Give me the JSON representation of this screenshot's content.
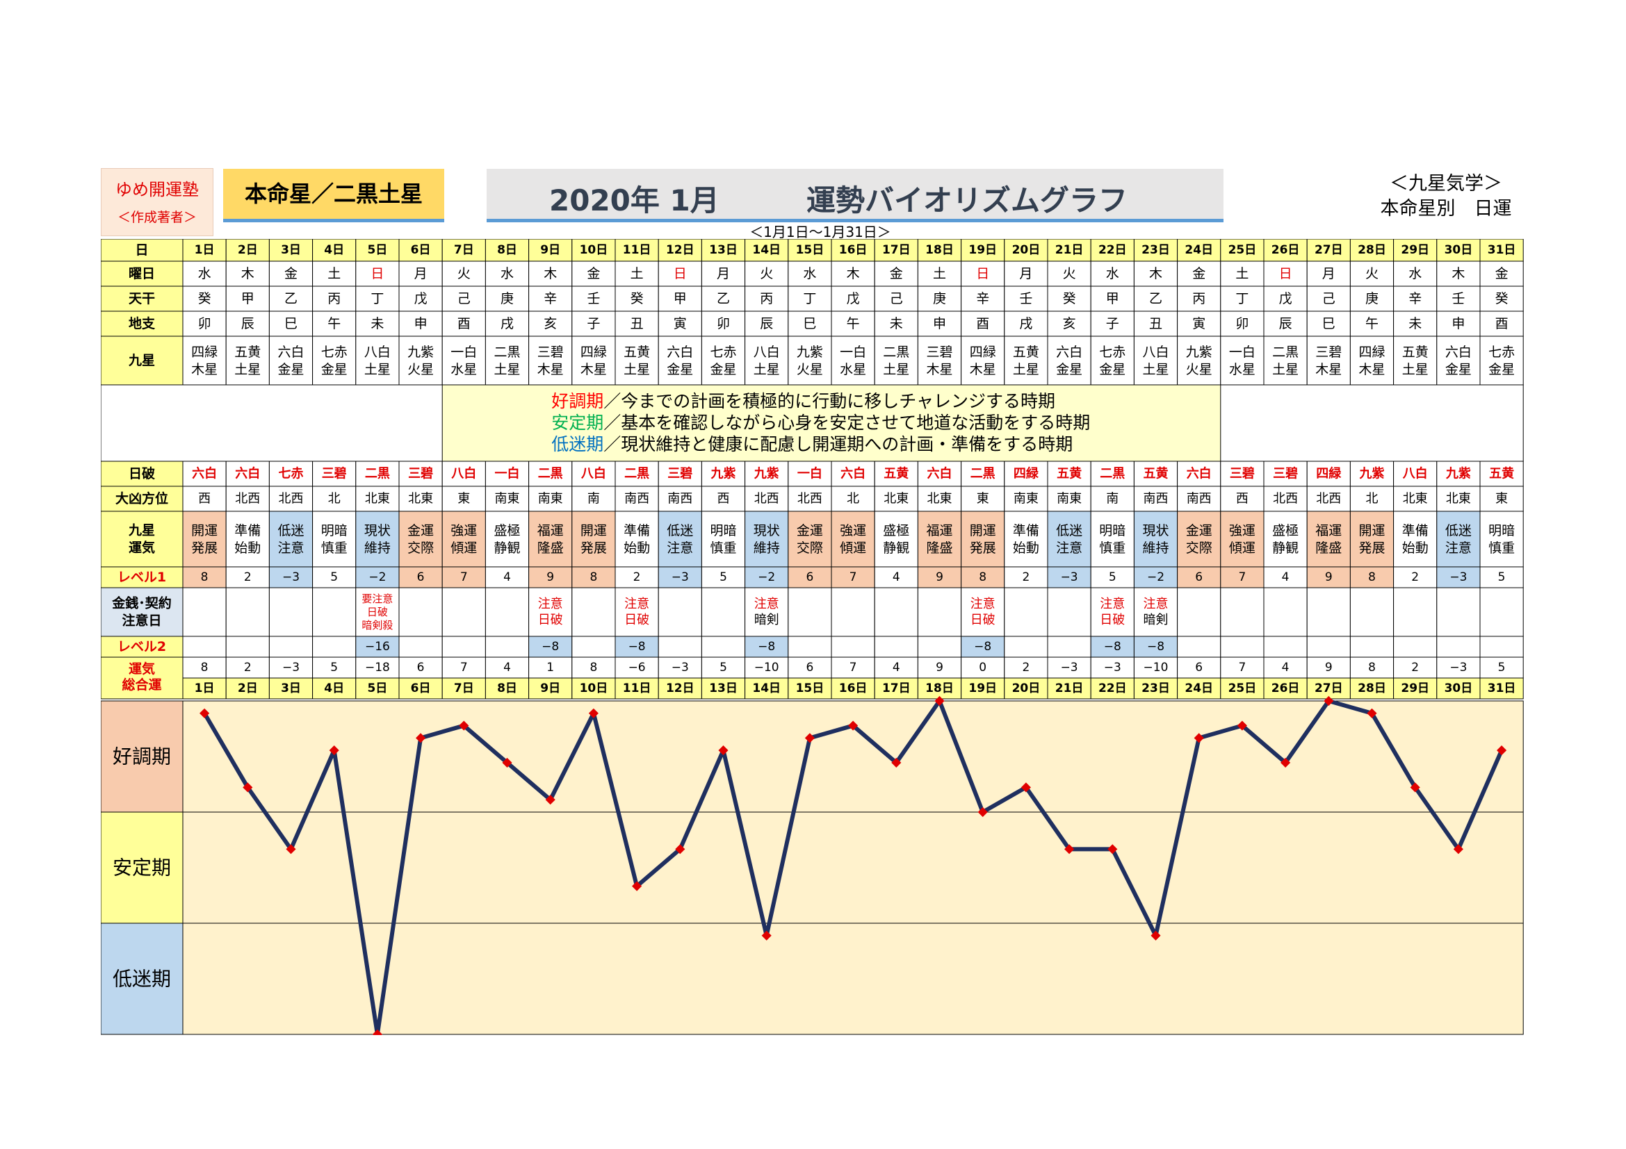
{
  "header": {
    "brand_name": "ゆめ開運塾",
    "brand_author": "＜作成著者＞",
    "honmei": "本命星／二黒土星",
    "title_year": "2020年 1月",
    "title_main": "運勢バイオリズムグラフ",
    "subtitle": "＜1月1日～1月31日＞",
    "kyusei_line1": "＜九星気学＞",
    "kyusei_line2": "本命星別　日運"
  },
  "row_labels": {
    "day": "日",
    "weekday": "曜日",
    "tenkan": "天干",
    "chishi": "地支",
    "kyusei": "九星",
    "nippa": "日破",
    "daikyo": "大凶方位",
    "unki_1": "九星",
    "unki_2": "運気",
    "level1": "レベル1",
    "kinsen_1": "金銭･契約",
    "kinsen_2": "注意日",
    "level2": "レベル2",
    "sogo_1": "運気",
    "sogo_2": "総合運"
  },
  "legend": [
    {
      "name": "好調期",
      "text": "／今までの計画を積極的に行動に移しチャレンジする時期",
      "color": "#ff0000"
    },
    {
      "name": "安定期",
      "text": "／基本を確認しながら心身を安定させて地道な活動をする時期",
      "color": "#00b050"
    },
    {
      "name": "低迷期",
      "text": "／現状維持と健康に配慮し開運期への計画・準備をする時期",
      "color": "#0070c0"
    }
  ],
  "bands": [
    {
      "label": "好調期",
      "color": "#f8cbad"
    },
    {
      "label": "安定期",
      "color": "#ffff99"
    },
    {
      "label": "低迷期",
      "color": "#bdd7ee"
    }
  ],
  "colors": {
    "header_row": "#ffff99",
    "chart_bg": "#fff2cc",
    "line": "#1f2f5f",
    "marker": "#e00000",
    "good_cell": "#f8cbad",
    "low_cell": "#bdd7ee",
    "red_text": "#e00000"
  },
  "days": [
    "1日",
    "2日",
    "3日",
    "4日",
    "5日",
    "6日",
    "7日",
    "8日",
    "9日",
    "10日",
    "11日",
    "12日",
    "13日",
    "14日",
    "15日",
    "16日",
    "17日",
    "18日",
    "19日",
    "20日",
    "21日",
    "22日",
    "23日",
    "24日",
    "25日",
    "26日",
    "27日",
    "28日",
    "29日",
    "30日",
    "31日"
  ],
  "weekdays": [
    "水",
    "木",
    "金",
    "土",
    "日",
    "月",
    "火",
    "水",
    "木",
    "金",
    "土",
    "日",
    "月",
    "火",
    "水",
    "木",
    "金",
    "土",
    "日",
    "月",
    "火",
    "水",
    "木",
    "金",
    "土",
    "日",
    "月",
    "火",
    "水",
    "木",
    "金"
  ],
  "tenkan": [
    "癸",
    "甲",
    "乙",
    "丙",
    "丁",
    "戊",
    "己",
    "庚",
    "辛",
    "壬",
    "癸",
    "甲",
    "乙",
    "丙",
    "丁",
    "戊",
    "己",
    "庚",
    "辛",
    "壬",
    "癸",
    "甲",
    "乙",
    "丙",
    "丁",
    "戊",
    "己",
    "庚",
    "辛",
    "壬",
    "癸"
  ],
  "chishi": [
    "卯",
    "辰",
    "巳",
    "午",
    "未",
    "申",
    "酉",
    "戌",
    "亥",
    "子",
    "丑",
    "寅",
    "卯",
    "辰",
    "巳",
    "午",
    "未",
    "申",
    "酉",
    "戌",
    "亥",
    "子",
    "丑",
    "寅",
    "卯",
    "辰",
    "巳",
    "午",
    "未",
    "申",
    "酉"
  ],
  "kyusei": [
    [
      "四緑",
      "木星"
    ],
    [
      "五黄",
      "土星"
    ],
    [
      "六白",
      "金星"
    ],
    [
      "七赤",
      "金星"
    ],
    [
      "八白",
      "土星"
    ],
    [
      "九紫",
      "火星"
    ],
    [
      "一白",
      "水星"
    ],
    [
      "二黒",
      "土星"
    ],
    [
      "三碧",
      "木星"
    ],
    [
      "四緑",
      "木星"
    ],
    [
      "五黄",
      "土星"
    ],
    [
      "六白",
      "金星"
    ],
    [
      "七赤",
      "金星"
    ],
    [
      "八白",
      "土星"
    ],
    [
      "九紫",
      "火星"
    ],
    [
      "一白",
      "水星"
    ],
    [
      "二黒",
      "土星"
    ],
    [
      "三碧",
      "木星"
    ],
    [
      "四緑",
      "木星"
    ],
    [
      "五黄",
      "土星"
    ],
    [
      "六白",
      "金星"
    ],
    [
      "七赤",
      "金星"
    ],
    [
      "八白",
      "土星"
    ],
    [
      "九紫",
      "火星"
    ],
    [
      "一白",
      "水星"
    ],
    [
      "二黒",
      "土星"
    ],
    [
      "三碧",
      "木星"
    ],
    [
      "四緑",
      "木星"
    ],
    [
      "五黄",
      "土星"
    ],
    [
      "六白",
      "金星"
    ],
    [
      "七赤",
      "金星"
    ]
  ],
  "nippa": [
    "六白",
    "六白",
    "七赤",
    "三碧",
    "二黒",
    "三碧",
    "八白",
    "一白",
    "二黒",
    "八白",
    "二黒",
    "三碧",
    "九紫",
    "九紫",
    "一白",
    "六白",
    "五黄",
    "六白",
    "二黒",
    "四緑",
    "五黄",
    "二黒",
    "五黄",
    "六白",
    "三碧",
    "三碧",
    "四緑",
    "九紫",
    "八白",
    "九紫",
    "五黄"
  ],
  "daikyo": [
    "西",
    "北西",
    "北西",
    "北",
    "北東",
    "北東",
    "東",
    "南東",
    "南東",
    "南",
    "南西",
    "南西",
    "西",
    "北西",
    "北西",
    "北",
    "北東",
    "北東",
    "東",
    "南東",
    "南東",
    "南",
    "南西",
    "南西",
    "西",
    "北西",
    "北西",
    "北",
    "北東",
    "北東",
    "東"
  ],
  "unki": [
    [
      "開運",
      "発展"
    ],
    [
      "準備",
      "始動"
    ],
    [
      "低迷",
      "注意"
    ],
    [
      "明暗",
      "慎重"
    ],
    [
      "現状",
      "維持"
    ],
    [
      "金運",
      "交際"
    ],
    [
      "強運",
      "傾運"
    ],
    [
      "盛極",
      "静観"
    ],
    [
      "福運",
      "隆盛"
    ],
    [
      "開運",
      "発展"
    ],
    [
      "準備",
      "始動"
    ],
    [
      "低迷",
      "注意"
    ],
    [
      "明暗",
      "慎重"
    ],
    [
      "現状",
      "維持"
    ],
    [
      "金運",
      "交際"
    ],
    [
      "強運",
      "傾運"
    ],
    [
      "盛極",
      "静観"
    ],
    [
      "福運",
      "隆盛"
    ],
    [
      "開運",
      "発展"
    ],
    [
      "準備",
      "始動"
    ],
    [
      "低迷",
      "注意"
    ],
    [
      "明暗",
      "慎重"
    ],
    [
      "現状",
      "維持"
    ],
    [
      "金運",
      "交際"
    ],
    [
      "強運",
      "傾運"
    ],
    [
      "盛極",
      "静観"
    ],
    [
      "福運",
      "隆盛"
    ],
    [
      "開運",
      "発展"
    ],
    [
      "準備",
      "始動"
    ],
    [
      "低迷",
      "注意"
    ],
    [
      "明暗",
      "慎重"
    ]
  ],
  "level1": [
    "8",
    "2",
    "−3",
    "5",
    "−2",
    "6",
    "7",
    "4",
    "9",
    "8",
    "2",
    "−3",
    "5",
    "−2",
    "6",
    "7",
    "4",
    "9",
    "8",
    "2",
    "−3",
    "5",
    "−2",
    "6",
    "7",
    "4",
    "9",
    "8",
    "2",
    "−3",
    "5"
  ],
  "kinsen": [
    [],
    [],
    [],
    [],
    [
      "要注意",
      "日破",
      "暗剣殺"
    ],
    [],
    [],
    [],
    [
      "注意",
      "日破"
    ],
    [],
    [
      "注意",
      "日破"
    ],
    [],
    [],
    [
      "注意",
      "暗剣"
    ],
    [],
    [],
    [],
    [],
    [
      "注意",
      "日破"
    ],
    [],
    [],
    [
      "注意",
      "日破"
    ],
    [
      "注意",
      "暗剣"
    ],
    [],
    [],
    [],
    [],
    [],
    [],
    [],
    []
  ],
  "level2": [
    "",
    "",
    "",
    "",
    "−16",
    "",
    "",
    "",
    "−8",
    "",
    "−8",
    "",
    "",
    "−8",
    "",
    "",
    "",
    "",
    "−8",
    "",
    "",
    "−8",
    "−8",
    "",
    "",
    "",
    "",
    "",
    "",
    "",
    ""
  ],
  "sogo": [
    "8",
    "2",
    "−3",
    "5",
    "−18",
    "6",
    "7",
    "4",
    "1",
    "8",
    "−6",
    "−3",
    "5",
    "−10",
    "6",
    "7",
    "4",
    "9",
    "0",
    "2",
    "−3",
    "−3",
    "−10",
    "6",
    "7",
    "4",
    "9",
    "8",
    "2",
    "−3",
    "5"
  ],
  "chart_data": {
    "type": "line",
    "title": "運勢バイオリズムグラフ",
    "categories": [
      "1日",
      "2日",
      "3日",
      "4日",
      "5日",
      "6日",
      "7日",
      "8日",
      "9日",
      "10日",
      "11日",
      "12日",
      "13日",
      "14日",
      "15日",
      "16日",
      "17日",
      "18日",
      "19日",
      "20日",
      "21日",
      "22日",
      "23日",
      "24日",
      "25日",
      "26日",
      "27日",
      "28日",
      "29日",
      "30日",
      "31日"
    ],
    "series": [
      {
        "name": "運気総合運",
        "values": [
          8,
          2,
          -3,
          5,
          -18,
          6,
          7,
          4,
          1,
          8,
          -6,
          -3,
          5,
          -10,
          6,
          7,
          4,
          9,
          0,
          2,
          -3,
          -3,
          -10,
          6,
          7,
          4,
          9,
          8,
          2,
          -3,
          5
        ]
      }
    ],
    "ylim": [
      -18,
      9
    ],
    "bands": [
      "好調期",
      "安定期",
      "低迷期"
    ],
    "grid": true
  }
}
